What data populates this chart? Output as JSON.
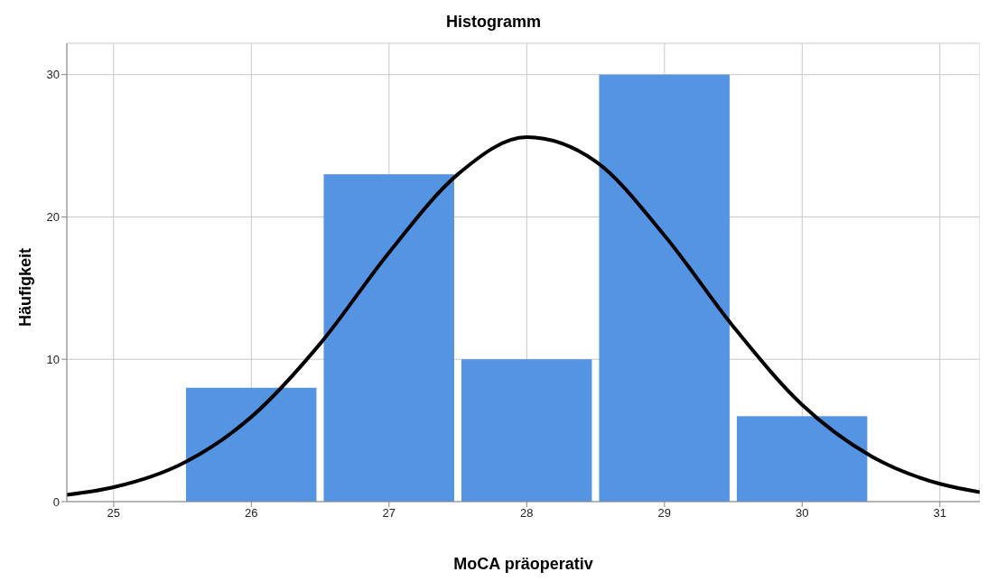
{
  "chart_data": {
    "type": "histogram",
    "title": "Histogramm",
    "xlabel": "MoCA präoperativ",
    "ylabel": "Häufigkeit",
    "bins": [
      25.5,
      26.5,
      27.5,
      28.5,
      29.5,
      30.5
    ],
    "values": [
      8,
      23,
      10,
      30,
      6
    ],
    "color": "#5594e3",
    "series": [
      {
        "type": "line",
        "color": "#000000",
        "x": [
          24.66,
          25,
          25.5,
          26,
          26.5,
          27,
          27.5,
          28,
          28.5,
          29,
          29.5,
          30,
          30.5,
          31,
          31.29
        ],
        "values": [
          0.47,
          1.01,
          2.68,
          5.95,
          11.1,
          17.5,
          23.0,
          25.6,
          23.9,
          18.7,
          12.3,
          6.8,
          3.2,
          1.25,
          0.67
        ]
      }
    ],
    "xlim": [
      24.66,
      31.29
    ],
    "xticks": [
      25,
      26,
      27,
      28,
      29,
      30,
      31
    ],
    "ylim": [
      0,
      32.2
    ],
    "yticks": [
      0,
      10,
      20,
      30
    ],
    "grid": true
  }
}
